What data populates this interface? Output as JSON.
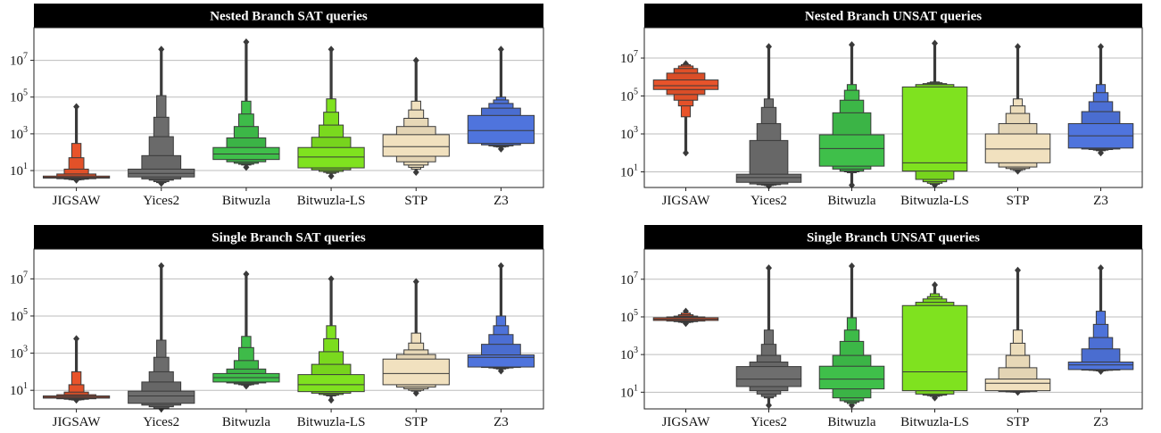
{
  "colors": {
    "JIGSAW": "#e8532a",
    "Yices2": "#6e6e6e",
    "Bitwuzla": "#3fbf4a",
    "Bitwuzla-LS": "#7fe21f",
    "STP": "#f1e1bf",
    "Z3": "#4f74dd",
    "title_bg": "#000000",
    "grid": "#bdbdbd"
  },
  "chart_data": [
    {
      "type": "boxen",
      "title": "Nested Branch SAT queries",
      "log_scale": true,
      "grid": true,
      "ylim": [
        1.2,
        600000000
      ],
      "yticks": [
        {
          "value": 10,
          "base": "10",
          "exp": "1"
        },
        {
          "value": 1000,
          "base": "10",
          "exp": "3"
        },
        {
          "value": 100000,
          "base": "10",
          "exp": "5"
        },
        {
          "value": 10000000,
          "base": "10",
          "exp": "7"
        }
      ],
      "categories": [
        "JIGSAW",
        "Yices2",
        "Bitwuzla",
        "Bitwuzla-LS",
        "STP",
        "Z3"
      ],
      "boxes": [
        {
          "median": 4.3,
          "levels": [
            [
              3.9,
              5.0
            ],
            [
              3.6,
              6.5
            ],
            [
              3.4,
              12
            ],
            [
              3.2,
              50
            ],
            [
              3.1,
              300
            ]
          ],
          "whisker": [
            3.0,
            15000
          ],
          "outlier_max": 30000
        },
        {
          "median": 7,
          "levels": [
            [
              4.5,
              12
            ],
            [
              3.5,
              65
            ],
            [
              3.0,
              700
            ],
            [
              2.5,
              8000
            ],
            [
              2.2,
              120000
            ]
          ],
          "whisker": [
            2.0,
            1500000
          ],
          "outlier_max": 40000000
        },
        {
          "median": 80,
          "levels": [
            [
              40,
              180
            ],
            [
              30,
              600
            ],
            [
              25,
              2500
            ],
            [
              22,
              12000
            ],
            [
              20,
              60000
            ]
          ],
          "whisker": [
            15,
            1000000
          ],
          "outlier_max": 100000000
        },
        {
          "median": 55,
          "levels": [
            [
              14,
              180
            ],
            [
              11,
              650
            ],
            [
              9,
              3000
            ],
            [
              8,
              15000
            ],
            [
              7,
              80000
            ]
          ],
          "whisker": [
            5,
            1000000
          ],
          "outlier_max": 40000000
        },
        {
          "median": 200,
          "levels": [
            [
              60,
              900
            ],
            [
              30,
              2500
            ],
            [
              20,
              7000
            ],
            [
              15,
              20000
            ],
            [
              12,
              60000
            ]
          ],
          "whisker": [
            8,
            1000000
          ],
          "outlier_max": 10000000
        },
        {
          "median": 1500,
          "levels": [
            [
              300,
              10000
            ],
            [
              250,
              25000
            ],
            [
              220,
              45000
            ],
            [
              200,
              70000
            ],
            [
              190,
              100000
            ]
          ],
          "whisker": [
            150,
            1000000
          ],
          "outlier_max": 40000000
        }
      ]
    },
    {
      "type": "boxen",
      "title": "Nested Branch UNSAT queries",
      "log_scale": true,
      "grid": true,
      "ylim": [
        1.5,
        400000000
      ],
      "yticks": [
        {
          "value": 10,
          "base": "10",
          "exp": "1"
        },
        {
          "value": 1000,
          "base": "10",
          "exp": "3"
        },
        {
          "value": 100000,
          "base": "10",
          "exp": "5"
        },
        {
          "value": 10000000,
          "base": "10",
          "exp": "7"
        }
      ],
      "categories": [
        "JIGSAW",
        "Yices2",
        "Bitwuzla",
        "Bitwuzla-LS",
        "STP",
        "Z3"
      ],
      "boxes": [
        {
          "median": 350000,
          "levels": [
            [
              220000,
              700000
            ],
            [
              120000,
              1600000
            ],
            [
              60000,
              2800000
            ],
            [
              30000,
              3800000
            ],
            [
              8000,
              4500000
            ]
          ],
          "whisker": [
            100,
            5000000
          ],
          "outlier_max": 5000000
        },
        {
          "median": 5,
          "levels": [
            [
              2.8,
              7.5
            ],
            [
              2.3,
              450
            ],
            [
              2.1,
              3500
            ],
            [
              2.0,
              25000
            ],
            [
              1.9,
              70000
            ]
          ],
          "whisker": [
            1.8,
            1000000
          ],
          "outlier_max": 40000000
        },
        {
          "median": 170,
          "levels": [
            [
              20,
              900
            ],
            [
              14,
              13000
            ],
            [
              11,
              60000
            ],
            [
              10,
              200000
            ],
            [
              9,
              400000
            ]
          ],
          "whisker": [
            2,
            1000000
          ],
          "outlier_max": 50000000
        },
        {
          "median": 30,
          "levels": [
            [
              11,
              300000
            ],
            [
              4,
              400000
            ],
            [
              3,
              450000
            ],
            [
              2.5,
              500000
            ],
            [
              2.2,
              550000
            ]
          ],
          "whisker": [
            2,
            1000000
          ],
          "outlier_max": 60000000
        },
        {
          "median": 160,
          "levels": [
            [
              30,
              1000
            ],
            [
              18,
              3500
            ],
            [
              15,
              12000
            ],
            [
              13,
              30000
            ],
            [
              12,
              70000
            ]
          ],
          "whisker": [
            11,
            1000000
          ],
          "outlier_max": 40000000
        },
        {
          "median": 800,
          "levels": [
            [
              180,
              3500
            ],
            [
              160,
              15000
            ],
            [
              150,
              50000
            ],
            [
              140,
              150000
            ],
            [
              130,
              400000
            ]
          ],
          "whisker": [
            100,
            1000000
          ],
          "outlier_max": 40000000
        }
      ]
    },
    {
      "type": "boxen",
      "title": "Single Branch SAT queries",
      "log_scale": true,
      "grid": true,
      "ylim": [
        1.0,
        400000000
      ],
      "yticks": [
        {
          "value": 10,
          "base": "10",
          "exp": "1"
        },
        {
          "value": 1000,
          "base": "10",
          "exp": "3"
        },
        {
          "value": 100000,
          "base": "10",
          "exp": "5"
        },
        {
          "value": 10000000,
          "base": "10",
          "exp": "7"
        }
      ],
      "categories": [
        "JIGSAW",
        "Yices2",
        "Bitwuzla",
        "Bitwuzla-LS",
        "STP",
        "Z3"
      ],
      "boxes": [
        {
          "median": 4.3,
          "levels": [
            [
              3.8,
              5.0
            ],
            [
              3.5,
              5.8
            ],
            [
              3.3,
              8
            ],
            [
              3.1,
              20
            ],
            [
              3.0,
              100
            ]
          ],
          "whisker": [
            3.0,
            3000
          ],
          "outlier_max": 6000
        },
        {
          "median": 5,
          "levels": [
            [
              2.0,
              9
            ],
            [
              1.6,
              28
            ],
            [
              1.3,
              100
            ],
            [
              1.1,
              600
            ],
            [
              1.0,
              5000
            ]
          ],
          "whisker": [
            1.0,
            1000000
          ],
          "outlier_max": 50000000
        },
        {
          "median": 48,
          "levels": [
            [
              28,
              80
            ],
            [
              25,
              140
            ],
            [
              22,
              400
            ],
            [
              20,
              2000
            ],
            [
              19,
              8000
            ]
          ],
          "whisker": [
            17,
            1000000
          ],
          "outlier_max": 18000000
        },
        {
          "median": 20,
          "levels": [
            [
              8.5,
              70
            ],
            [
              7,
              250
            ],
            [
              6,
              1200
            ],
            [
              5.5,
              6000
            ],
            [
              5,
              30000
            ]
          ],
          "whisker": [
            3,
            1000000
          ],
          "outlier_max": 10000000
        },
        {
          "median": 80,
          "levels": [
            [
              20,
              480
            ],
            [
              15,
              850
            ],
            [
              12,
              1500
            ],
            [
              10,
              3500
            ],
            [
              9,
              12000
            ]
          ],
          "whisker": [
            7,
            1000000
          ],
          "outlier_max": 7000000
        },
        {
          "median": 600,
          "levels": [
            [
              180,
              800
            ],
            [
              170,
              3000
            ],
            [
              160,
              10000
            ],
            [
              150,
              30000
            ],
            [
              140,
              100000
            ]
          ],
          "whisker": [
            110,
            1000000
          ],
          "outlier_max": 50000000
        }
      ]
    },
    {
      "type": "boxen",
      "title": "Single Branch UNSAT queries",
      "log_scale": true,
      "grid": true,
      "ylim": [
        1.3,
        400000000
      ],
      "yticks": [
        {
          "value": 10,
          "base": "10",
          "exp": "1"
        },
        {
          "value": 1000,
          "base": "10",
          "exp": "3"
        },
        {
          "value": 100000,
          "base": "10",
          "exp": "5"
        },
        {
          "value": 10000000,
          "base": "10",
          "exp": "7"
        }
      ],
      "categories": [
        "JIGSAW",
        "Yices2",
        "Bitwuzla",
        "Bitwuzla-LS",
        "STP",
        "Z3"
      ],
      "boxes": [
        {
          "median": 75000,
          "levels": [
            [
              65000,
              90000
            ],
            [
              60000,
              100000
            ],
            [
              56000,
              110000
            ],
            [
              52000,
              130000
            ],
            [
              50000,
              160000
            ]
          ],
          "whisker": [
            45000,
            180000
          ],
          "outlier_max": 200000
        },
        {
          "median": 50,
          "levels": [
            [
              20,
              230
            ],
            [
              12,
              400
            ],
            [
              8,
              900
            ],
            [
              6,
              3500
            ],
            [
              5,
              20000
            ]
          ],
          "whisker": [
            2,
            1000000
          ],
          "outlier_max": 40000000
        },
        {
          "median": 50,
          "levels": [
            [
              15,
              240
            ],
            [
              5,
              900
            ],
            [
              3.5,
              5000
            ],
            [
              3,
              20000
            ],
            [
              2.5,
              90000
            ]
          ],
          "whisker": [
            2,
            1000000
          ],
          "outlier_max": 50000000
        },
        {
          "median": 120,
          "levels": [
            [
              12,
              400000
            ],
            [
              8,
              600000
            ],
            [
              7,
              900000
            ],
            [
              6.5,
              1200000
            ],
            [
              6,
              1700000
            ]
          ],
          "whisker": [
            5,
            3000000
          ],
          "outlier_max": 5000000
        },
        {
          "median": 30,
          "levels": [
            [
              12,
              50
            ],
            [
              11,
              200
            ],
            [
              10.5,
              900
            ],
            [
              10.2,
              4000
            ],
            [
              10,
              20000
            ]
          ],
          "whisker": [
            10,
            1000000
          ],
          "outlier_max": 30000000
        },
        {
          "median": 280,
          "levels": [
            [
              160,
              400
            ],
            [
              150,
              2000
            ],
            [
              145,
              8000
            ],
            [
              140,
              40000
            ],
            [
              135,
              200000
            ]
          ],
          "whisker": [
            130,
            1000000
          ],
          "outlier_max": 40000000
        }
      ]
    }
  ]
}
